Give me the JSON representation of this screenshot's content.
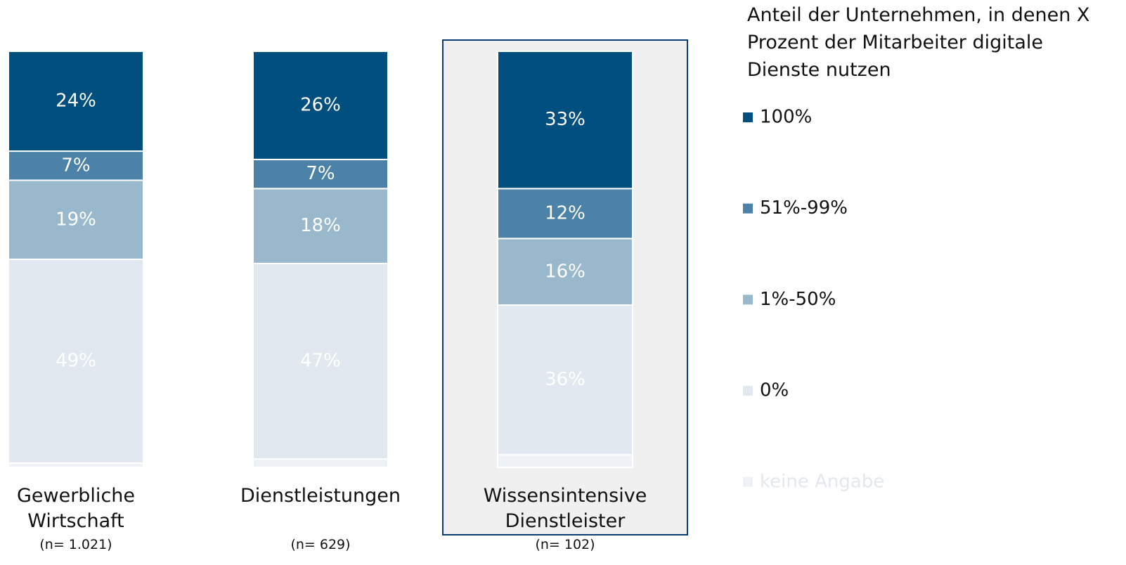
{
  "chart_data": {
    "type": "stacked_bar",
    "legend_title": "Anteil der Unternehmen, in denen X Prozent der Mitarbeiter digitale Dienste nutzen",
    "categories": [
      "Gewerbliche Wirtschaft",
      "Dienstleistungen",
      "Wissensintensive Dienstleister"
    ],
    "sample_sizes": [
      "(n= 1.021)",
      "(n= 629)",
      "(n= 102)"
    ],
    "highlight": 2,
    "ylim": [
      0,
      100
    ],
    "legend": "right",
    "series": [
      {
        "name": "100%",
        "color": "#004f7f",
        "label_color": "#ffffff",
        "values": [
          24,
          26,
          33
        ],
        "value_labels": [
          "24%",
          "26%",
          "33%"
        ]
      },
      {
        "name": "51%-99%",
        "color": "#4d82a8",
        "label_color": "#ffffff",
        "values": [
          7,
          7,
          12
        ],
        "value_labels": [
          "7%",
          "7%",
          "12%"
        ]
      },
      {
        "name": "1%-50%",
        "color": "#99b8cc",
        "label_color": "#ffffff",
        "values": [
          19,
          18,
          16
        ],
        "value_labels": [
          "19%",
          "18%",
          "16%"
        ]
      },
      {
        "name": "0%",
        "color": "#e1e8ef",
        "label_color": "#ffffff",
        "values": [
          49,
          47,
          36
        ],
        "value_labels": [
          "49%",
          "47%",
          "36%"
        ]
      },
      {
        "name": "keine Angabe",
        "color": "#eef1f5",
        "legend_text_color": "#e3e8ee",
        "values": [
          1,
          2,
          3
        ]
      }
    ]
  }
}
